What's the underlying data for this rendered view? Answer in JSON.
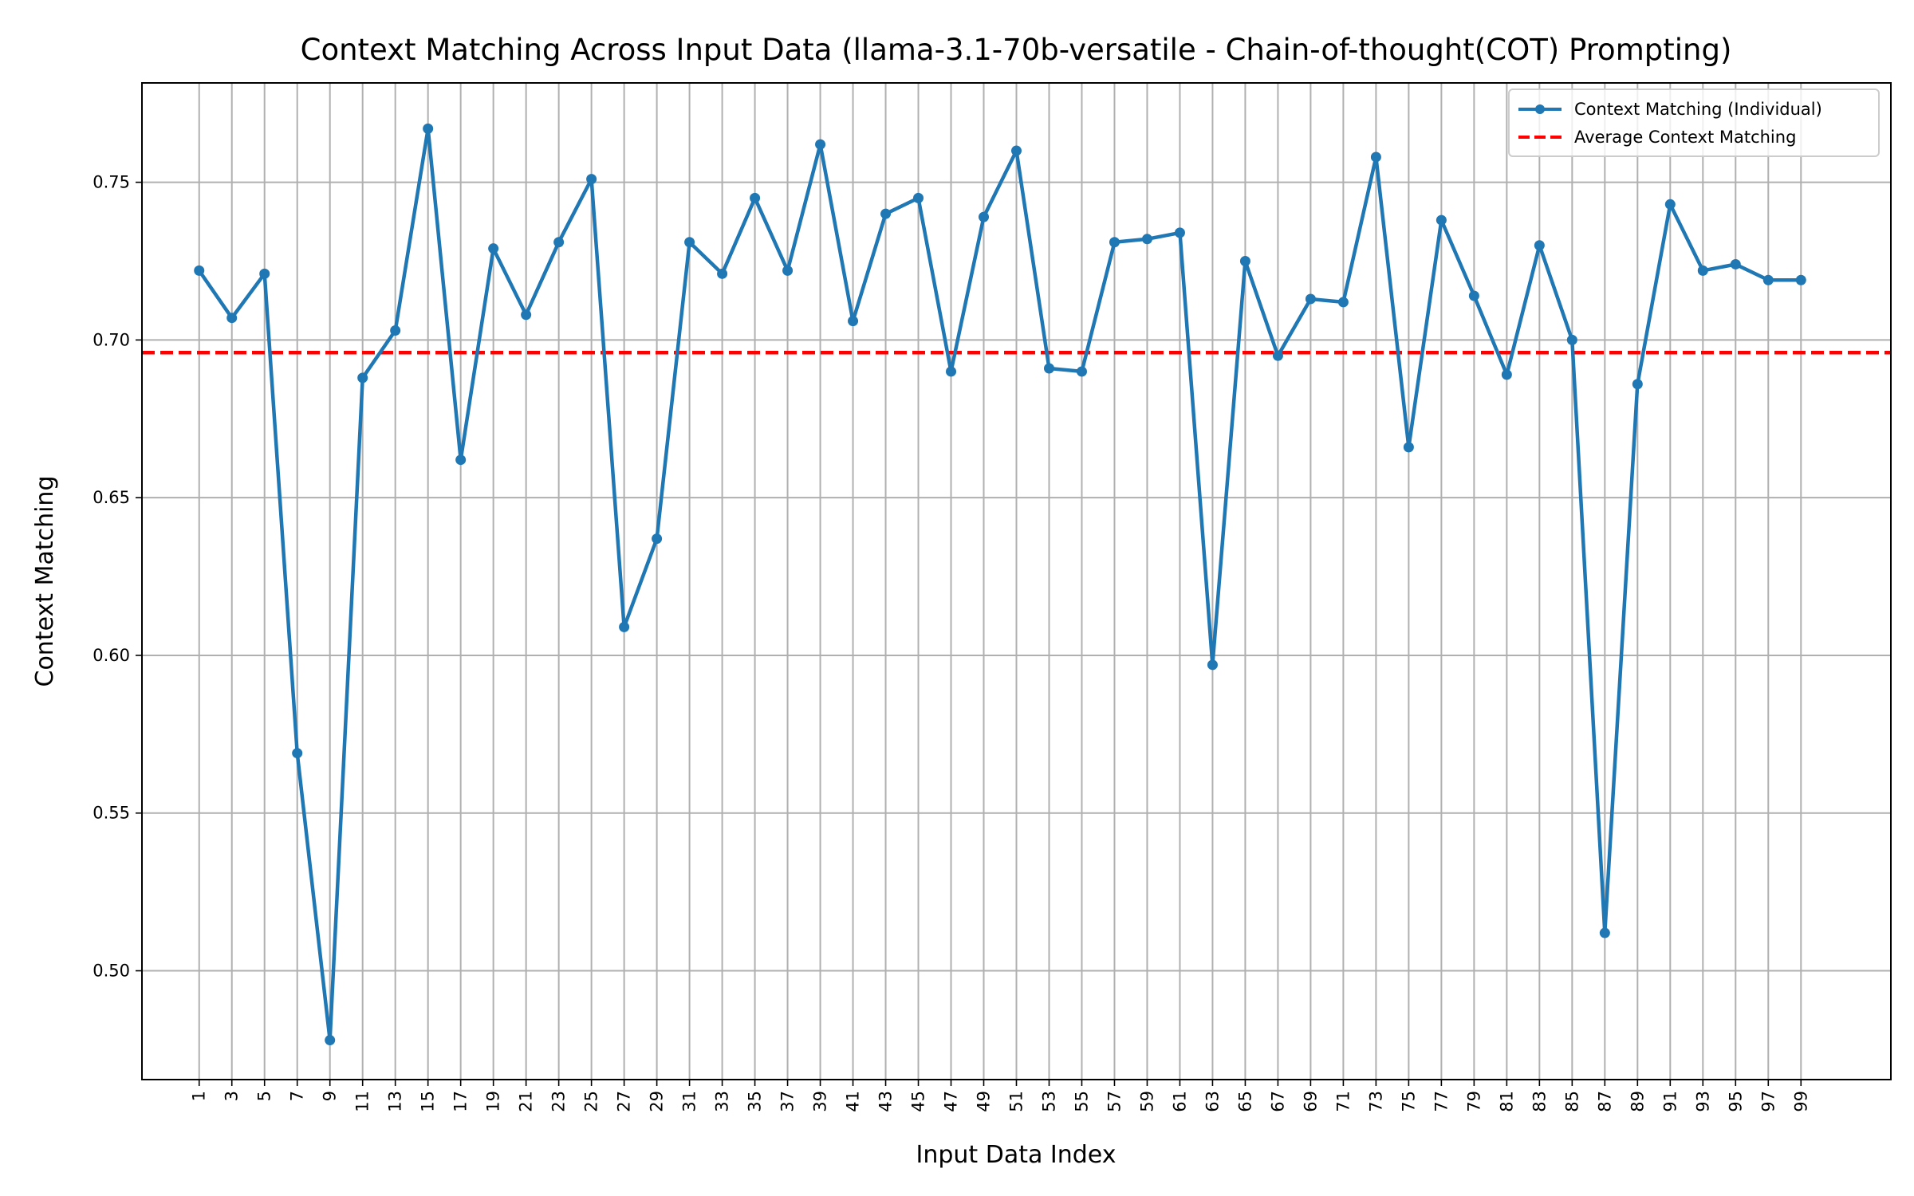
{
  "chart_data": {
    "type": "line",
    "title": "Context Matching Across Input Data (llama-3.1-70b-versatile - Chain-of-thought(COT) Prompting)",
    "xlabel": "Input Data Index",
    "ylabel": "Context Matching",
    "xlim": [
      -2.5,
      104.5
    ],
    "ylim": [
      0.4655,
      0.7815
    ],
    "x_ticks": [
      1,
      3,
      5,
      7,
      9,
      11,
      13,
      15,
      17,
      19,
      21,
      23,
      25,
      27,
      29,
      31,
      33,
      35,
      37,
      39,
      41,
      43,
      45,
      47,
      49,
      51,
      53,
      55,
      57,
      59,
      61,
      63,
      65,
      67,
      69,
      71,
      73,
      75,
      77,
      79,
      81,
      83,
      85,
      87,
      89,
      91,
      93,
      95,
      97,
      99
    ],
    "y_ticks": [
      0.5,
      0.55,
      0.6,
      0.65,
      0.7,
      0.75
    ],
    "y_tick_labels": [
      "0.50",
      "0.55",
      "0.60",
      "0.65",
      "0.70",
      "0.75"
    ],
    "grid": true,
    "legend_position": "top-right",
    "series": [
      {
        "name": "Context Matching (Individual)",
        "color": "#1f77b4",
        "style": "solid-with-markers",
        "x": [
          1,
          3,
          5,
          7,
          9,
          11,
          13,
          15,
          17,
          19,
          21,
          23,
          25,
          27,
          29,
          31,
          33,
          35,
          37,
          39,
          41,
          43,
          45,
          47,
          49,
          51,
          53,
          55,
          57,
          59,
          61,
          63,
          65,
          67,
          69,
          71,
          73,
          75,
          77,
          79,
          81,
          83,
          85,
          87,
          89,
          91,
          93,
          95,
          97,
          99
        ],
        "values": [
          0.722,
          0.707,
          0.721,
          0.569,
          0.478,
          0.688,
          0.703,
          0.767,
          0.662,
          0.729,
          0.708,
          0.731,
          0.751,
          0.609,
          0.637,
          0.731,
          0.721,
          0.745,
          0.722,
          0.762,
          0.706,
          0.74,
          0.745,
          0.69,
          0.739,
          0.76,
          0.691,
          0.69,
          0.731,
          0.732,
          0.734,
          0.597,
          0.725,
          0.695,
          0.713,
          0.712,
          0.758,
          0.666,
          0.738,
          0.714,
          0.689,
          0.73,
          0.7,
          0.512,
          0.686,
          0.743,
          0.722,
          0.724,
          0.719,
          0.719
        ]
      },
      {
        "name": "Average Context Matching",
        "color": "#ff0000",
        "style": "dashed",
        "value": 0.696
      }
    ]
  }
}
